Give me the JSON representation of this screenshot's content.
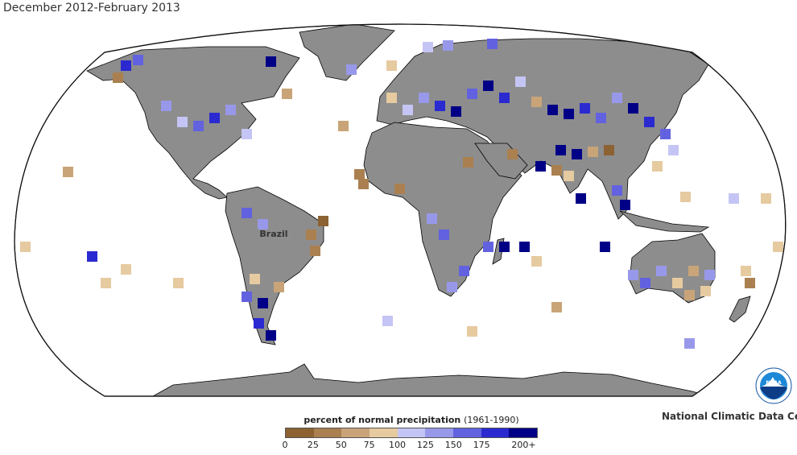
{
  "map": {
    "title": "December 2012-February 2013",
    "place_label": "Brazil",
    "colors": {
      "ocean": "#ffffff",
      "land_no_data": "#8d8d8d",
      "coastline": "#000000"
    }
  },
  "legend": {
    "title": "percent of normal precipitation",
    "subtitle": "(1961-1990)",
    "tick_labels": [
      "0",
      "25",
      "50",
      "75",
      "100",
      "125",
      "150",
      "175",
      "200+"
    ],
    "colors": [
      "#8c6232",
      "#aa8050",
      "#c8a478",
      "#e6caa0",
      "#c5c5f5",
      "#9898ea",
      "#6262e0",
      "#2a2ad0",
      "#000087"
    ]
  },
  "footer": {
    "agency": "National Climatic Data Center",
    "logo_text": "NOAA"
  }
}
